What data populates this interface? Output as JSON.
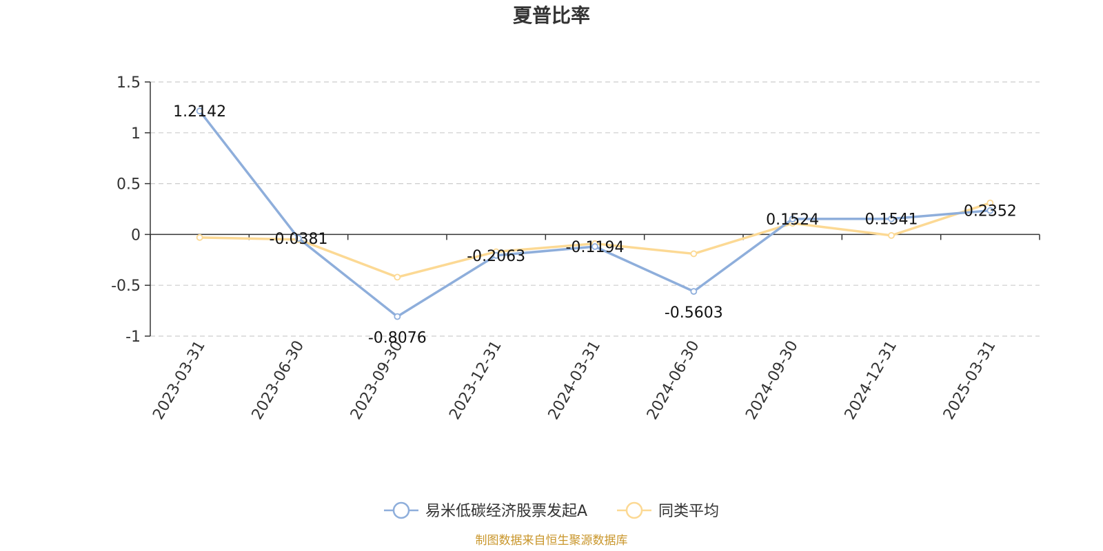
{
  "chart_data": {
    "type": "line",
    "title": "夏普比率",
    "categories": [
      "2023-03-31",
      "2023-06-30",
      "2023-09-30",
      "2023-12-31",
      "2024-03-31",
      "2024-06-30",
      "2024-09-30",
      "2024-12-31",
      "2025-03-31"
    ],
    "ylim": [
      -1,
      1.5
    ],
    "yticks": [
      1.5,
      1,
      0.5,
      0,
      -0.5,
      -1
    ],
    "ytick_labels": [
      "1.5",
      "1",
      "0.5",
      "0",
      "-0.5",
      "-1"
    ],
    "grid": true,
    "legend_position": "bottom",
    "series": [
      {
        "name": "易米低碳经济股票发起A",
        "color": "#8eaedb",
        "values": [
          1.2142,
          -0.0381,
          -0.8076,
          -0.2063,
          -0.1194,
          -0.5603,
          0.1524,
          0.1541,
          0.2352
        ],
        "labels": [
          "1.2142",
          "-0.0381",
          "-0.8076",
          "-0.2063",
          "-0.1194",
          "-0.5603",
          "0.1524",
          "0.1541",
          "0.2352"
        ]
      },
      {
        "name": "同类平均",
        "color": "#fcd994",
        "values": [
          -0.03,
          -0.05,
          -0.42,
          -0.17,
          -0.09,
          -0.19,
          0.11,
          -0.01,
          0.31
        ]
      }
    ]
  },
  "footer": {
    "source": "制图数据来自恒生聚源数据库"
  }
}
